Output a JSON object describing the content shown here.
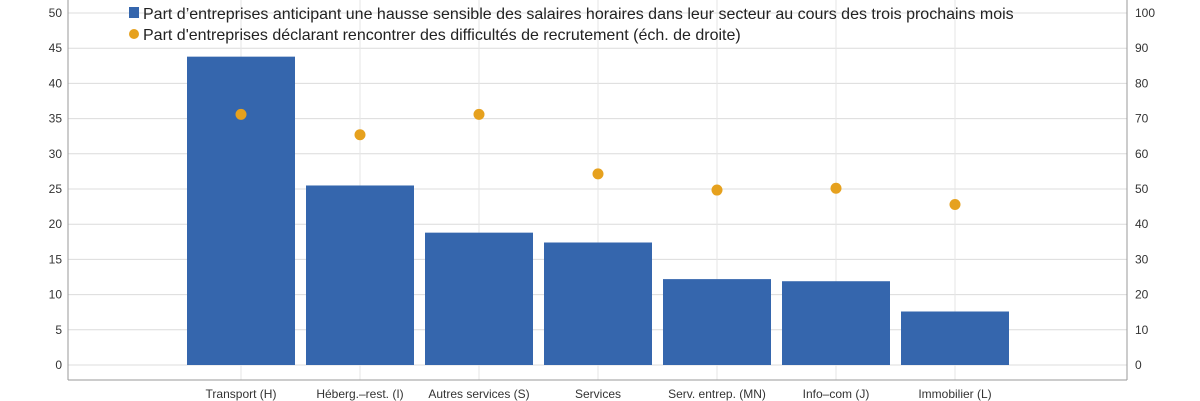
{
  "chart_data": {
    "type": "bar",
    "categories": [
      "Transport (H)",
      "Héberg.–rest. (I)",
      "Autres services (S)",
      "Services",
      "Serv. entrep. (MN)",
      "Info–com (J)",
      "Immobilier (L)"
    ],
    "series": [
      {
        "name": "Part d’entreprises anticipant une hausse sensible des salaires horaires dans leur secteur au cours des trois prochains mois",
        "type": "bar",
        "axis": "left",
        "color": "#3566ad",
        "values": [
          43.8,
          25.5,
          18.8,
          17.4,
          12.2,
          11.9,
          7.6
        ]
      },
      {
        "name": "Part d'entreprises déclarant rencontrer des difficultés de recrutement (éch. de droite)",
        "type": "scatter",
        "axis": "right",
        "color": "#e6a11e",
        "values": [
          71.2,
          65.4,
          71.2,
          54.3,
          49.7,
          50.2,
          45.6
        ]
      }
    ],
    "y_left": {
      "lim": [
        0,
        50
      ],
      "ticks": [
        "0",
        "5",
        "10",
        "15",
        "20",
        "25",
        "30",
        "35",
        "40",
        "45",
        "50"
      ]
    },
    "y_right": {
      "lim": [
        0,
        100
      ],
      "ticks": [
        "0",
        "10",
        "20",
        "30",
        "40",
        "50",
        "60",
        "70",
        "80",
        "90",
        "100"
      ]
    },
    "grid": true,
    "legend_position": "top"
  }
}
